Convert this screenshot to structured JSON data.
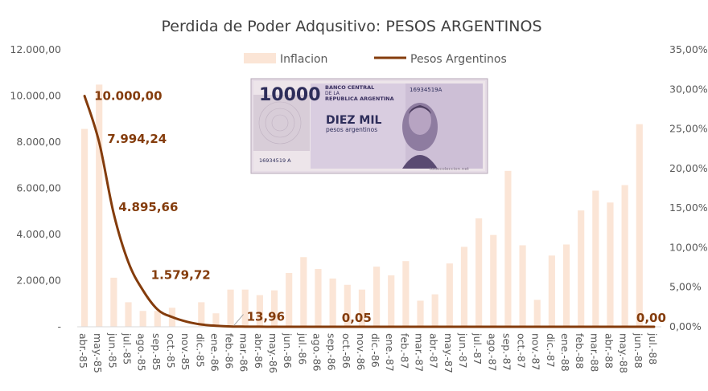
{
  "chart_data": {
    "type": "bar+line",
    "title": "Perdida de Poder Adqusitivo: PESOS ARGENTINOS",
    "categories": [
      "abr.-85",
      "may.-85",
      "jun.-85",
      "jul.-85",
      "ago.-85",
      "sep.-85",
      "oct.-85",
      "nov.-85",
      "dic.-85",
      "ene.-86",
      "feb.-86",
      "mar.-86",
      "abr.-86",
      "may.-86",
      "jun.-86",
      "jul.-86",
      "ago.-86",
      "sep.-86",
      "oct.-86",
      "nov.-86",
      "dic.-86",
      "ene.-87",
      "feb.-87",
      "mar.-87",
      "abr.-87",
      "may.-87",
      "jun.-87",
      "jul.-87",
      "ago.-87",
      "sep.-87",
      "oct.-87",
      "nov.-87",
      "dic.-87",
      "ene.-88",
      "feb.-88",
      "mar.-88",
      "abr.-88",
      "may.-88",
      "jun.-88",
      "jul.-88"
    ],
    "series": [
      {
        "name": "Inflacion",
        "type": "bar",
        "axis": "right",
        "color": "#fbe5d6",
        "values": [
          0.25,
          0.306,
          0.062,
          0.031,
          0.02,
          0.02,
          0.024,
          0.0,
          0.031,
          0.017,
          0.047,
          0.047,
          0.04,
          0.046,
          0.068,
          0.088,
          0.073,
          0.061,
          0.053,
          0.047,
          0.076,
          0.065,
          0.083,
          0.033,
          0.041,
          0.08,
          0.101,
          0.137,
          0.116,
          0.197,
          0.103,
          0.034,
          0.09,
          0.104,
          0.147,
          0.172,
          0.157,
          0.179,
          0.256,
          0.0
        ]
      },
      {
        "name": "Pesos Argentinos",
        "type": "line",
        "axis": "left",
        "color": "#843c0c",
        "values": [
          10000.0,
          7994.24,
          4895.66,
          2800,
          1579.72,
          750,
          420,
          220,
          100,
          45,
          13.96,
          6,
          3,
          1.5,
          0.8,
          0.5,
          0.3,
          0.2,
          0.05,
          0.04,
          0.03,
          0.02,
          0.01,
          0.01,
          0.01,
          0.0,
          0.0,
          0.0,
          0.0,
          0.0,
          0.0,
          0.0,
          0.0,
          0.0,
          0.0,
          0.0,
          0.0,
          0.0,
          0.0,
          0.0
        ]
      }
    ],
    "data_labels": [
      {
        "index": 0,
        "text": "10.000,00"
      },
      {
        "index": 1,
        "text": "7.994,24"
      },
      {
        "index": 2,
        "text": "4.895,66"
      },
      {
        "index": 4,
        "text": "1.579,72"
      },
      {
        "index": 10,
        "text": "13,96"
      },
      {
        "index": 18,
        "text": "0,05"
      },
      {
        "index": 39,
        "text": "0,00"
      }
    ],
    "y_left": {
      "min": 0,
      "max": 12000,
      "ticks": [
        0,
        2000,
        4000,
        6000,
        8000,
        10000,
        12000
      ],
      "tick_labels": [
        "-",
        "2.000,00",
        "4.000,00",
        "6.000,00",
        "8.000,00",
        "10.000,00",
        "12.000,00"
      ]
    },
    "y_right": {
      "min": 0,
      "max": 0.35,
      "ticks": [
        0,
        0.05,
        0.1,
        0.15,
        0.2,
        0.25,
        0.3,
        0.35
      ],
      "tick_labels": [
        "0,00%",
        "5,00%",
        "10,00%",
        "15,00%",
        "20,00%",
        "25,00%",
        "30,00%",
        "35,00%"
      ]
    },
    "legend": {
      "position": "top",
      "items": [
        "Inflacion",
        "Pesos Argentinos"
      ]
    },
    "grid": false
  },
  "banknote": {
    "amount": "10000",
    "bank_line1": "BANCO CENTRAL",
    "bank_line2": "DE LA",
    "bank_line3": "REPUBLICA ARGENTINA",
    "serial": "16934519A",
    "serial_bottom": "16934519 A",
    "words": "DIEZ MIL",
    "currency": "pesos argentinos",
    "watermark": "todocoleccion.net"
  }
}
